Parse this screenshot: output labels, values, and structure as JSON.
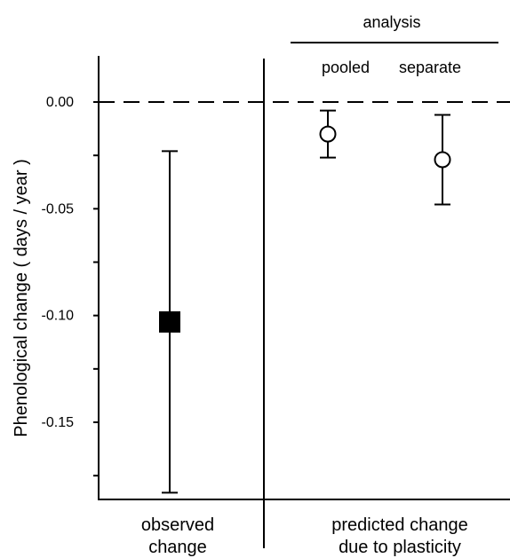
{
  "chart_data": {
    "type": "errorbar",
    "ylabel": "Phenological change ( days / year )",
    "ylim": [
      -0.185,
      0.02
    ],
    "yticks": [
      {
        "value": 0.0,
        "label": "0.00"
      },
      {
        "value": -0.05,
        "label": "-0.05"
      },
      {
        "value": -0.1,
        "label": "-0.10"
      },
      {
        "value": -0.15,
        "label": "-0.15"
      }
    ],
    "minor_ticks": [
      0.0,
      -0.025,
      -0.05,
      -0.075,
      -0.1,
      -0.125,
      -0.15,
      -0.175
    ],
    "reference_line": {
      "value": 0.0,
      "style": "dashed"
    },
    "panels": [
      {
        "category_line1": "observed",
        "category_line2": "change",
        "points": [
          {
            "estimate": -0.103,
            "lower": -0.183,
            "upper": -0.023,
            "marker": "filled-square",
            "label": ""
          }
        ]
      },
      {
        "category_line1": "predicted change",
        "category_line2": "due to plasticity",
        "group_header": "analysis",
        "points": [
          {
            "estimate": -0.015,
            "lower": -0.026,
            "upper": -0.004,
            "marker": "open-circle",
            "label": "pooled"
          },
          {
            "estimate": -0.027,
            "lower": -0.048,
            "upper": -0.006,
            "marker": "open-circle",
            "label": "separate"
          }
        ]
      }
    ]
  }
}
